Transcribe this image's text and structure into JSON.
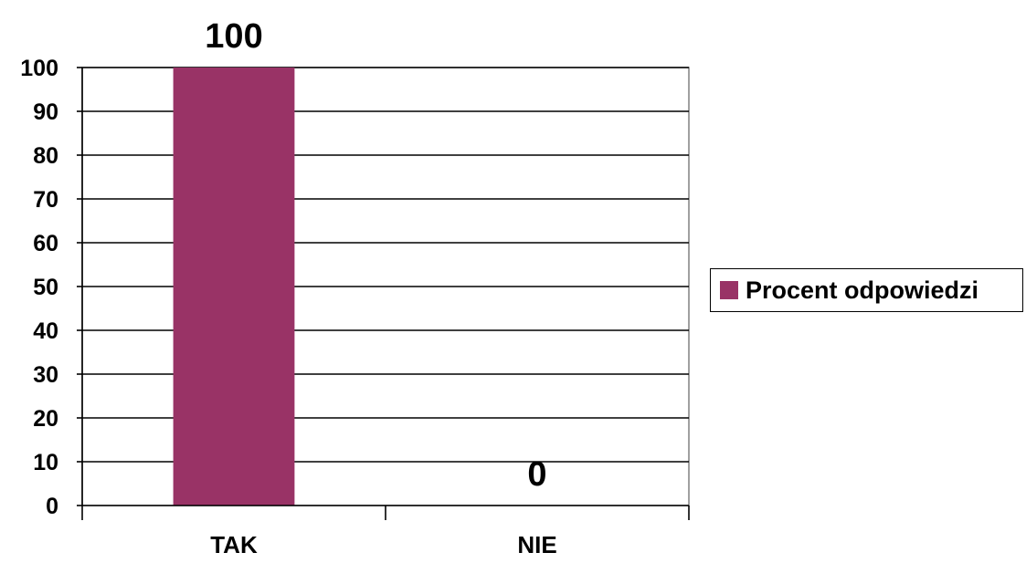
{
  "chart_data": {
    "type": "bar",
    "title": "",
    "categories": [
      "TAK",
      "NIE"
    ],
    "series": [
      {
        "name": "Procent odpowiedzi",
        "values": [
          100,
          0
        ],
        "color": "#993366"
      }
    ],
    "data_labels": [
      "100",
      "0"
    ],
    "ylim": [
      0,
      100
    ],
    "yticks": [
      0,
      10,
      20,
      30,
      40,
      50,
      60,
      70,
      80,
      90,
      100
    ],
    "ytick_labels": [
      "0",
      "10",
      "20",
      "30",
      "40",
      "50",
      "60",
      "70",
      "80",
      "90",
      "100"
    ],
    "grid": true,
    "legend_position": "right",
    "xlabel": "",
    "ylabel": ""
  }
}
